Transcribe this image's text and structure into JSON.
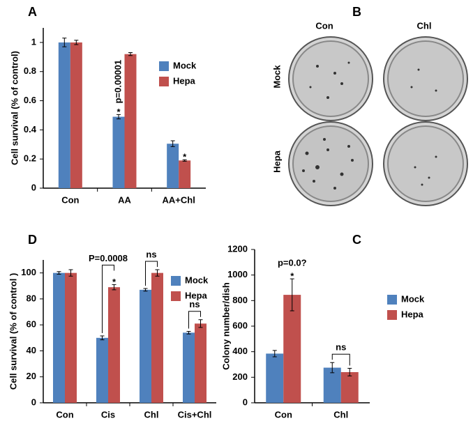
{
  "chart_data": [
    {
      "type": "bar",
      "panel": "A",
      "ylabel": "Cell survival (% of control)",
      "categories": [
        "Con",
        "AA",
        "AA+Chl"
      ],
      "series": [
        {
          "name": "Mock",
          "color": "#4f81bd",
          "values": [
            1.0,
            0.49,
            0.305
          ],
          "errors": [
            0.03,
            0.015,
            0.02
          ]
        },
        {
          "name": "Hepa",
          "color": "#c0504d",
          "values": [
            1.0,
            0.92,
            0.19
          ],
          "errors": [
            0.015,
            0.01,
            0.005
          ]
        }
      ],
      "ylim": [
        0,
        1.1
      ],
      "yticks": [
        0,
        0.2,
        0.4,
        0.6,
        0.8,
        1
      ],
      "annotations": [
        {
          "text": "*",
          "category": 1,
          "series": [
            0
          ]
        },
        {
          "text": "p=0.00001",
          "category": 1,
          "series": [
            0
          ],
          "rotate": true
        },
        {
          "text": "*",
          "category": 2,
          "series": [
            1
          ]
        }
      ]
    },
    {
      "type": "bar",
      "panel": "D",
      "ylabel": "Cell survival (% of control )",
      "categories": [
        "Con",
        "Cis",
        "Chl",
        "Cis+Chl"
      ],
      "series": [
        {
          "name": "Mock",
          "color": "#4f81bd",
          "values": [
            100,
            50,
            87,
            54
          ],
          "errors": [
            1,
            1.5,
            1,
            1
          ]
        },
        {
          "name": "Hepa",
          "color": "#c0504d",
          "values": [
            100,
            89,
            100,
            61
          ],
          "errors": [
            2.5,
            2,
            2.5,
            3
          ]
        }
      ],
      "ylim": [
        0,
        110
      ],
      "yticks": [
        0,
        20,
        40,
        60,
        80,
        100
      ],
      "annotations": [
        {
          "text": "*",
          "category": 1,
          "series": [
            1
          ]
        },
        {
          "text": "P=0.0008",
          "category": 1,
          "series": [
            0,
            1
          ]
        },
        {
          "text": "ns",
          "category": 2,
          "series": [
            0,
            1
          ]
        },
        {
          "text": "ns",
          "category": 3,
          "series": [
            0,
            1
          ]
        }
      ]
    },
    {
      "type": "bar",
      "panel": "C",
      "ylabel": "Colony  number/dish",
      "categories": [
        "Con",
        "Chl"
      ],
      "series": [
        {
          "name": "Mock",
          "color": "#4f81bd",
          "values": [
            385,
            275
          ],
          "errors": [
            25,
            40
          ]
        },
        {
          "name": "Hepa",
          "color": "#c0504d",
          "values": [
            845,
            240
          ],
          "errors": [
            125,
            30
          ]
        }
      ],
      "ylim": [
        0,
        1200
      ],
      "yticks": [
        0,
        200,
        400,
        600,
        800,
        1000,
        1200
      ],
      "annotations": [
        {
          "text": "*",
          "category": 0,
          "series": [
            1
          ]
        },
        {
          "text": "p=0.0?",
          "category": 0,
          "series": [
            1
          ]
        },
        {
          "text": "ns",
          "category": 1,
          "series": [
            0,
            1
          ]
        }
      ]
    }
  ],
  "panel_b": {
    "label": "B",
    "columns": [
      "Con",
      "Chl"
    ],
    "rows": [
      "Mock",
      "Hepa"
    ]
  }
}
